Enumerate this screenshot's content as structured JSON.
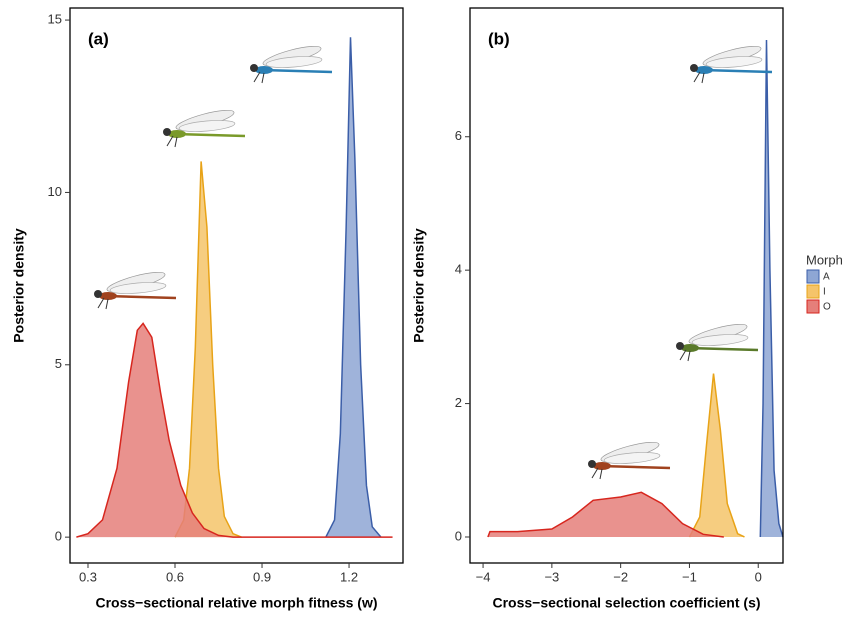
{
  "chart_data": [
    {
      "type": "area",
      "panel_label": "(a)",
      "x_label": "Cross−sectional relative morph fitness (w)",
      "y_label": "Posterior density",
      "xlim": [
        0.238,
        1.386
      ],
      "ylim": [
        -0.75,
        15.35
      ],
      "xticks": [
        0.3,
        0.6,
        0.9,
        1.2
      ],
      "yticks": [
        0,
        5,
        10,
        15
      ],
      "legend_title": "Morph",
      "series": [
        {
          "name": "A",
          "color": "#3b5ea8",
          "fill": "#8ea6d4",
          "x": [
            1.12,
            1.15,
            1.17,
            1.19,
            1.205,
            1.22,
            1.24,
            1.26,
            1.28,
            1.31
          ],
          "values": [
            0,
            0.5,
            3,
            9,
            14.5,
            11,
            5,
            1.5,
            0.3,
            0
          ]
        },
        {
          "name": "I",
          "color": "#e8a317",
          "fill": "#f5c46a",
          "x": [
            0.6,
            0.63,
            0.65,
            0.67,
            0.69,
            0.71,
            0.73,
            0.75,
            0.77,
            0.8,
            0.83
          ],
          "values": [
            0,
            0.5,
            2,
            5.5,
            10.9,
            9,
            5,
            2,
            0.6,
            0.1,
            0
          ]
        },
        {
          "name": "O",
          "color": "#d7261e",
          "fill": "#e57f7a",
          "x": [
            0.26,
            0.3,
            0.35,
            0.4,
            0.44,
            0.47,
            0.49,
            0.52,
            0.55,
            0.58,
            0.62,
            0.66,
            0.7,
            0.75,
            0.8,
            1.35
          ],
          "values": [
            0,
            0.1,
            0.5,
            2,
            4.5,
            6,
            6.2,
            5.8,
            4.2,
            2.8,
            1.5,
            0.7,
            0.25,
            0.05,
            0,
            0
          ]
        }
      ]
    },
    {
      "type": "area",
      "panel_label": "(b)",
      "x_label": "Cross−sectional selection coefficient (s)",
      "y_label": "Posterior density",
      "xlim": [
        -4.19,
        0.36
      ],
      "ylim": [
        -0.39,
        7.93
      ],
      "xticks": [
        {
          "value": -4,
          "label": "−4"
        },
        {
          "value": -3,
          "label": "−3"
        },
        {
          "value": -2,
          "label": "−2"
        },
        {
          "value": -1,
          "label": "−1"
        },
        0
      ],
      "yticks": [
        0,
        2,
        4,
        6
      ],
      "series": [
        {
          "name": "A",
          "color": "#3b5ea8",
          "fill": "#8ea6d4",
          "x": [
            0.03,
            0.07,
            0.12,
            0.17,
            0.23,
            0.3,
            0.36
          ],
          "values": [
            0,
            2,
            7.45,
            4,
            1,
            0.2,
            0
          ]
        },
        {
          "name": "I",
          "color": "#e8a317",
          "fill": "#f5c46a",
          "x": [
            -1.0,
            -0.85,
            -0.75,
            -0.65,
            -0.55,
            -0.45,
            -0.3,
            -0.2
          ],
          "values": [
            0,
            0.3,
            1.4,
            2.45,
            1.6,
            0.5,
            0.05,
            0
          ]
        },
        {
          "name": "O",
          "color": "#d7261e",
          "fill": "#e57f7a",
          "x": [
            -3.93,
            -3.9,
            -3.5,
            -3.0,
            -2.7,
            -2.4,
            -2.0,
            -1.7,
            -1.4,
            -1.1,
            -0.8,
            -0.5
          ],
          "values": [
            0,
            0.08,
            0.08,
            0.12,
            0.3,
            0.55,
            0.6,
            0.67,
            0.5,
            0.2,
            0.04,
            0
          ]
        }
      ]
    }
  ]
}
